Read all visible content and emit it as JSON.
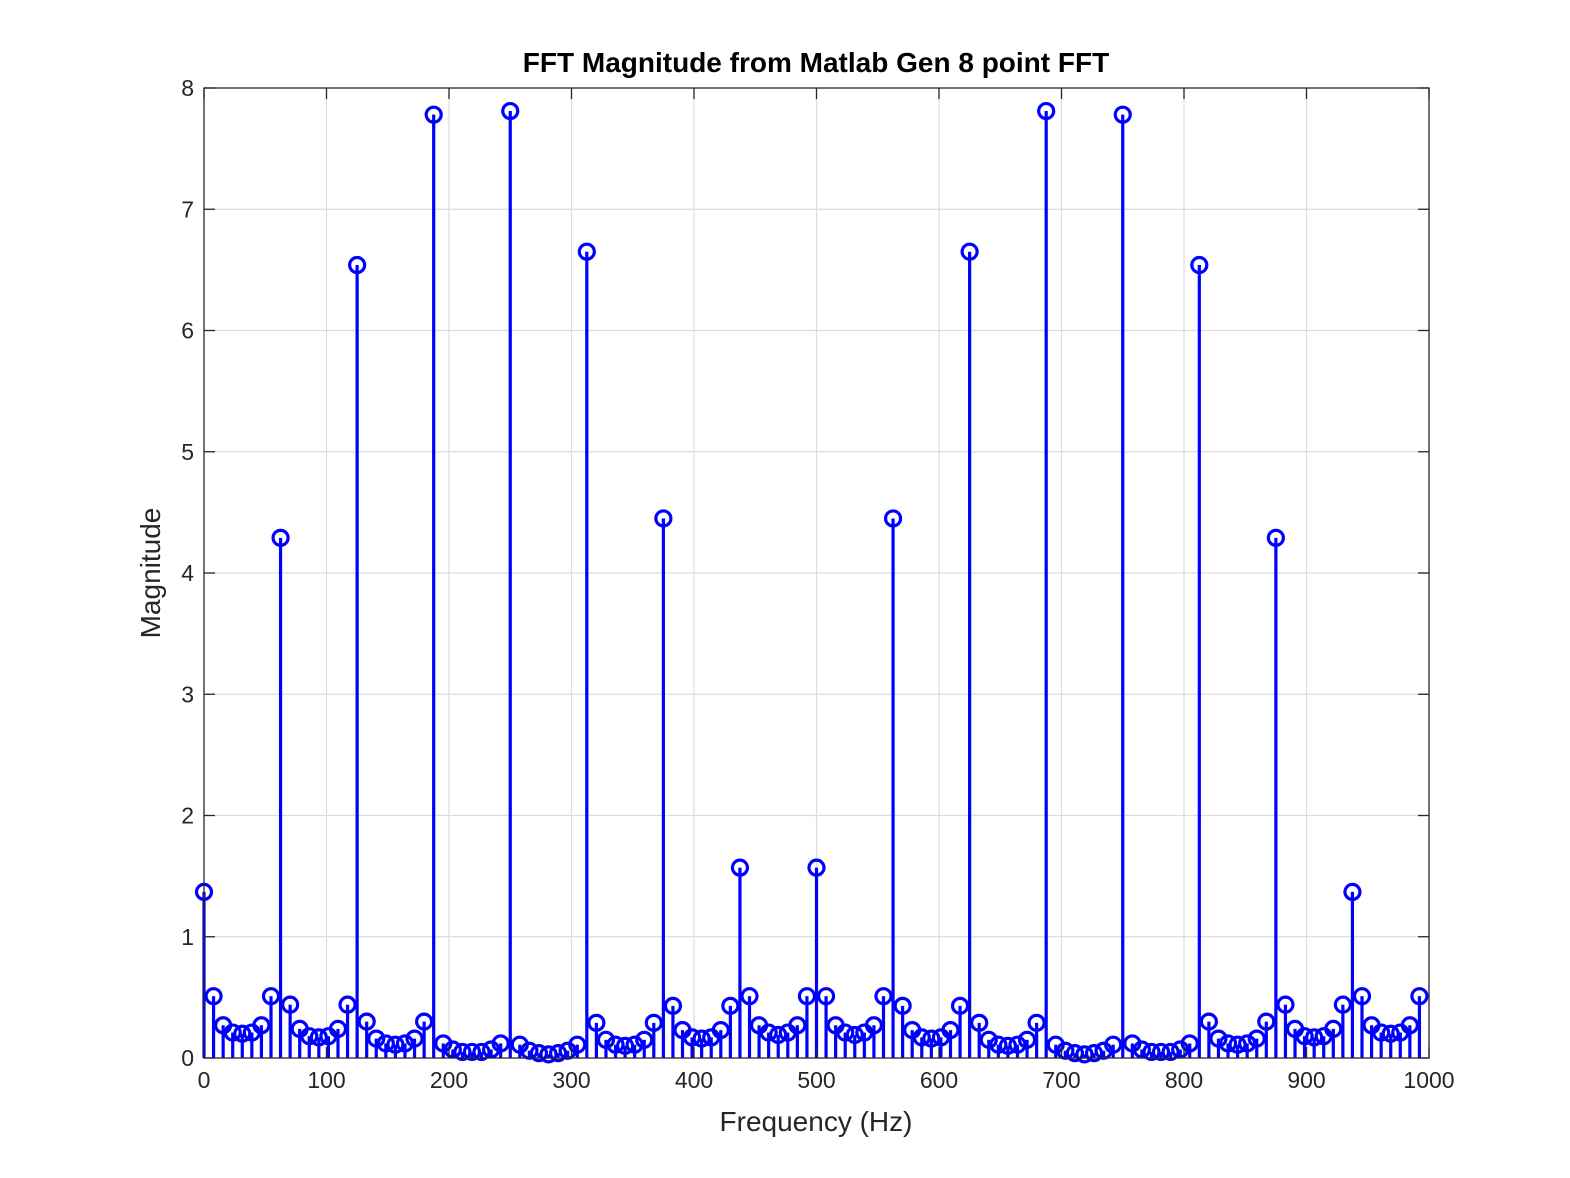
{
  "chart_data": {
    "type": "stem",
    "title": "FFT Magnitude from Matlab Gen 8 point FFT",
    "xlabel": "Frequency (Hz)",
    "ylabel": "Magnitude",
    "xlim": [
      0,
      1000
    ],
    "ylim": [
      0,
      8
    ],
    "xticks": [
      0,
      100,
      200,
      300,
      400,
      500,
      600,
      700,
      800,
      900,
      1000
    ],
    "yticks": [
      0,
      1,
      2,
      3,
      4,
      5,
      6,
      7,
      8
    ],
    "grid": true,
    "series": [
      {
        "color": "#0000ff",
        "marker": "circle",
        "x": [
          0,
          7.8125,
          15.625,
          23.4375,
          31.25,
          39.0625,
          46.875,
          54.6875,
          62.5,
          70.3125,
          78.125,
          85.9375,
          93.75,
          101.5625,
          109.375,
          117.1875,
          125,
          132.8125,
          140.625,
          148.4375,
          156.25,
          164.0625,
          171.875,
          179.6875,
          187.5,
          195.3125,
          203.125,
          210.9375,
          218.75,
          226.5625,
          234.375,
          242.1875,
          250,
          257.8125,
          265.625,
          273.4375,
          281.25,
          289.0625,
          296.875,
          304.6875,
          312.5,
          320.3125,
          328.125,
          335.9375,
          343.75,
          351.5625,
          359.375,
          367.1875,
          375,
          382.8125,
          390.625,
          398.4375,
          406.25,
          414.0625,
          421.875,
          429.6875,
          437.5,
          445.3125,
          453.125,
          460.9375,
          468.75,
          476.5625,
          484.375,
          492.1875,
          500,
          507.8125,
          515.625,
          523.4375,
          531.25,
          539.0625,
          546.875,
          554.6875,
          562.5,
          570.3125,
          578.125,
          585.9375,
          593.75,
          601.5625,
          609.375,
          617.1875,
          625,
          632.8125,
          640.625,
          648.4375,
          656.25,
          664.0625,
          671.875,
          679.6875,
          687.5,
          695.3125,
          703.125,
          710.9375,
          718.75,
          726.5625,
          734.375,
          742.1875,
          750,
          757.8125,
          765.625,
          773.4375,
          781.25,
          789.0625,
          796.875,
          804.6875,
          812.5,
          820.3125,
          828.125,
          835.9375,
          843.75,
          851.5625,
          859.375,
          867.1875,
          875,
          882.8125,
          890.625,
          898.4375,
          906.25,
          914.0625,
          921.875,
          929.6875,
          937.5,
          945.3125,
          953.125,
          960.9375,
          968.75,
          976.5625,
          984.375,
          992.1875
        ],
        "y": [
          1.37,
          0.51,
          0.27,
          0.21,
          0.2,
          0.21,
          0.27,
          0.51,
          4.29,
          0.44,
          0.24,
          0.18,
          0.17,
          0.18,
          0.24,
          0.44,
          6.54,
          0.3,
          0.16,
          0.12,
          0.11,
          0.12,
          0.16,
          0.3,
          7.78,
          0.12,
          0.07,
          0.05,
          0.05,
          0.05,
          0.07,
          0.12,
          7.81,
          0.11,
          0.06,
          0.04,
          0.03,
          0.04,
          0.06,
          0.11,
          6.65,
          0.29,
          0.15,
          0.11,
          0.1,
          0.11,
          0.15,
          0.29,
          4.45,
          0.43,
          0.23,
          0.17,
          0.16,
          0.17,
          0.23,
          0.43,
          1.57,
          0.51,
          0.27,
          0.21,
          0.19,
          0.21,
          0.27,
          0.51,
          1.57,
          0.51,
          0.27,
          0.21,
          0.19,
          0.21,
          0.27,
          0.51,
          4.45,
          0.43,
          0.23,
          0.17,
          0.16,
          0.17,
          0.23,
          0.43,
          6.65,
          0.29,
          0.15,
          0.11,
          0.1,
          0.11,
          0.15,
          0.29,
          7.81,
          0.11,
          0.06,
          0.04,
          0.03,
          0.04,
          0.06,
          0.11,
          7.78,
          0.12,
          0.07,
          0.05,
          0.05,
          0.05,
          0.07,
          0.12,
          6.54,
          0.3,
          0.16,
          0.12,
          0.11,
          0.12,
          0.16,
          0.3,
          4.29,
          0.44,
          0.24,
          0.18,
          0.17,
          0.18,
          0.24,
          0.44,
          1.37,
          0.51,
          0.27,
          0.21,
          0.2,
          0.21,
          0.27,
          0.51
        ]
      }
    ]
  }
}
